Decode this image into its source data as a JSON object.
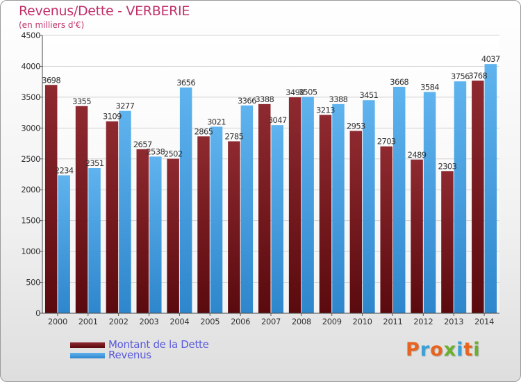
{
  "title": "Revenus/Dette - VERBERIE",
  "subtitle": "(en milliers d'€)",
  "logo": {
    "text": "Proxiti",
    "colors": [
      "#e8641e",
      "#3aa0d8",
      "#e8641e",
      "#6ab02e",
      "#3aa0d8",
      "#e8641e",
      "#6ab02e"
    ]
  },
  "chart_data": {
    "type": "bar",
    "categories": [
      "2000",
      "2001",
      "2002",
      "2003",
      "2004",
      "2005",
      "2006",
      "2007",
      "2008",
      "2009",
      "2010",
      "2011",
      "2012",
      "2013",
      "2014"
    ],
    "series": [
      {
        "name": "Montant de la Dette",
        "color": "#7a1f24",
        "values": [
          3698,
          3355,
          3109,
          2657,
          2502,
          2865,
          2785,
          3388,
          3498,
          3213,
          2953,
          2703,
          2489,
          2303,
          3768
        ],
        "labels": [
          "3698",
          "3355",
          "3109",
          "2657",
          "2502",
          "2865",
          "2785",
          "3388",
          "3498",
          "3213",
          "2953",
          "2703",
          "2489",
          "2303",
          "3768"
        ]
      },
      {
        "name": "Revenus",
        "color": "#4aa3e3",
        "values": [
          2234,
          2351,
          3277,
          2538,
          3656,
          3021,
          3366,
          3047,
          3505,
          3388,
          3451,
          3668,
          3584,
          3756,
          4037
        ],
        "labels": [
          "2234",
          "2351",
          "3277",
          "2538",
          "3656",
          "3021",
          "3366",
          "3047",
          "3505",
          "3388",
          "3451",
          "3668",
          "3584",
          "3756",
          "4037"
        ]
      }
    ],
    "ylim": [
      0,
      4500
    ],
    "yticks": [
      "0",
      "500",
      "1000",
      "1500",
      "2000",
      "2500",
      "3000",
      "3500",
      "4000",
      "4500"
    ],
    "grid": true,
    "legend_position": "bottom-left"
  }
}
